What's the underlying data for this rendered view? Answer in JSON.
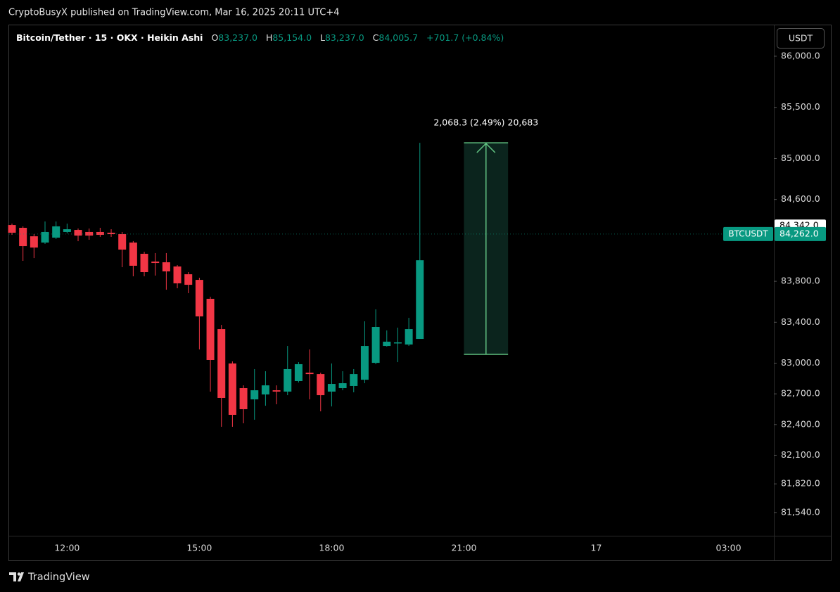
{
  "chart_data": {
    "type": "candlestick",
    "title": "CryptoBusyX published on TradingView.com, Mar 16, 2025 20:11 UTC+4",
    "instrument": "Bitcoin/Tether · 15 · OKX · Heikin Ashi",
    "legend": [
      {
        "label": "O",
        "value": "83,237.0"
      },
      {
        "label": "H",
        "value": "85,154.0"
      },
      {
        "label": "L",
        "value": "83,237.0"
      },
      {
        "label": "C",
        "value": "84,005.7"
      }
    ],
    "change": "+701.7 (+0.84%)",
    "currency": "USDT",
    "brand": "TradingView",
    "up_color": "#089981",
    "down_color": "#f23645",
    "categories": [
      null,
      null,
      null,
      null,
      null,
      "12:00",
      null,
      null,
      null,
      null,
      null,
      null,
      null,
      null,
      null,
      null,
      null,
      "15:00",
      null,
      null,
      null,
      null,
      null,
      null,
      null,
      null,
      null,
      null,
      null,
      "18:00",
      null,
      null,
      null,
      null,
      null,
      null,
      null,
      null,
      null,
      null,
      null,
      "21:00",
      null,
      null,
      null,
      null,
      null,
      null,
      null,
      null,
      null,
      null,
      null,
      "17",
      null,
      null,
      null,
      null,
      null,
      null,
      null,
      null,
      null,
      null,
      null,
      "03:00",
      null,
      null,
      null
    ],
    "open": [
      84350,
      84323,
      84240,
      84179,
      84227,
      84282,
      84302,
      84282,
      84282,
      84275,
      84261,
      84179,
      84069,
      83993,
      83986,
      83945,
      83869,
      83814,
      83629,
      83333,
      82997,
      82756,
      82646,
      82694,
      82735,
      82722,
      82825,
      82907,
      82893,
      82722,
      82756,
      82777,
      82838,
      83003,
      83168,
      83196,
      83182,
      83237,
      null,
      null,
      null,
      null,
      null,
      null,
      null,
      null,
      null,
      null,
      null,
      null,
      null,
      null,
      null,
      null,
      null,
      null,
      null,
      null,
      null,
      null,
      null,
      null,
      null,
      null,
      null,
      null,
      null,
      null,
      null
    ],
    "high": [
      84364,
      84337,
      84261,
      84385,
      84385,
      84364,
      84316,
      84316,
      84323,
      84309,
      84282,
      84193,
      84089,
      84076,
      84076,
      83959,
      83890,
      83835,
      83649,
      83374,
      83017,
      82783,
      82942,
      82921,
      82783,
      83168,
      83010,
      83134,
      82907,
      82997,
      82921,
      82942,
      83409,
      83526,
      83320,
      83347,
      83443,
      85154,
      null,
      null,
      null,
      null,
      null,
      null,
      null,
      null,
      null,
      null,
      null,
      null,
      null,
      null,
      null,
      null,
      null,
      null,
      null,
      null,
      null,
      null,
      null,
      null,
      null,
      null,
      null,
      null,
      null,
      null,
      null
    ],
    "low": [
      84254,
      84000,
      84027,
      84165,
      84213,
      84268,
      84192,
      84206,
      84234,
      84234,
      83938,
      83849,
      83849,
      83856,
      83718,
      83732,
      83684,
      83134,
      82722,
      82378,
      82378,
      82412,
      82447,
      82584,
      82598,
      82687,
      82811,
      82646,
      82529,
      82577,
      82735,
      82715,
      82804,
      82990,
      83162,
      83010,
      83168,
      83237,
      null,
      null,
      null,
      null,
      null,
      null,
      null,
      null,
      null,
      null,
      null,
      null,
      null,
      null,
      null,
      null,
      null,
      null,
      null,
      null,
      null,
      null,
      null,
      null,
      null,
      null,
      null,
      null,
      null,
      null,
      null
    ],
    "close": [
      84275,
      84144,
      84130,
      84282,
      84337,
      84309,
      84247,
      84247,
      84254,
      84261,
      84110,
      83952,
      83890,
      83979,
      83897,
      83780,
      83766,
      83457,
      83031,
      82660,
      82495,
      82550,
      82735,
      82783,
      82722,
      82942,
      82990,
      82893,
      82687,
      82797,
      82804,
      82893,
      83168,
      83354,
      83210,
      83203,
      83333,
      84005.7,
      null,
      null,
      null,
      null,
      null,
      null,
      null,
      null,
      null,
      null,
      null,
      null,
      null,
      null,
      null,
      null,
      null,
      null,
      null,
      null,
      null,
      null,
      null,
      null,
      null,
      null,
      null,
      null,
      null,
      null,
      null
    ],
    "ylim": [
      81313,
      86309
    ],
    "yticks": [
      {
        "value": 86000,
        "label": "86,000.0"
      },
      {
        "value": 85500,
        "label": "85,500.0"
      },
      {
        "value": 85000,
        "label": "85,000.0"
      },
      {
        "value": 84600,
        "label": "84,600.0"
      },
      {
        "value": 83800,
        "label": "83,800.0"
      },
      {
        "value": 83400,
        "label": "83,400.0"
      },
      {
        "value": 83000,
        "label": "83,000.0"
      },
      {
        "value": 82700,
        "label": "82,700.0"
      },
      {
        "value": 82400,
        "label": "82,400.0"
      },
      {
        "value": 82100,
        "label": "82,100.0"
      },
      {
        "value": 81820,
        "label": "81,820.0"
      },
      {
        "value": 81540,
        "label": "81,540.0"
      }
    ],
    "grid": false,
    "price_labels": [
      {
        "value": 84342,
        "label": "84,342.0"
      },
      {
        "value": 84262,
        "label": "84,262.0",
        "name": "BTCUSDT"
      }
    ],
    "measure": {
      "label": "2,068.3 (2.49%) 20,683",
      "x": [
        41,
        45
      ],
      "from": 83086,
      "to": 85154
    }
  }
}
